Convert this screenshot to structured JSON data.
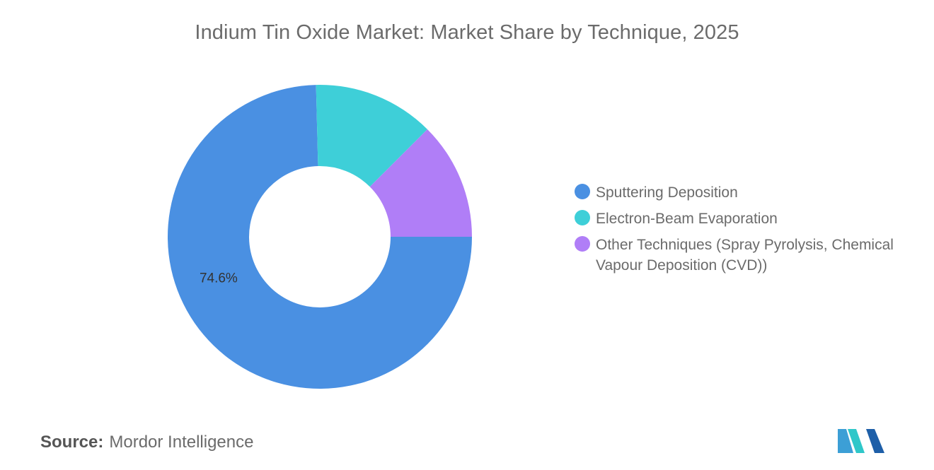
{
  "title": "Indium Tin Oxide Market: Market Share by Technique, 2025",
  "source": {
    "key": "Source:",
    "value": "Mordor Intelligence"
  },
  "chart_data": {
    "type": "pie",
    "style": "donut",
    "title": "Indium Tin Oxide Market: Market Share by Technique, 2025",
    "categories": [
      "Sputtering Deposition",
      "Electron-Beam Evaporation",
      "Other Techniques (Spray Pyrolysis, Chemical Vapour Deposition (CVD))"
    ],
    "values": [
      74.6,
      12.9,
      12.5
    ],
    "colors": [
      "#4a90e2",
      "#3ecfd8",
      "#b07ef7"
    ],
    "data_labels": [
      "74.6%",
      "",
      ""
    ],
    "legend_position": "right"
  },
  "legend": {
    "items": [
      {
        "label": "Sputtering Deposition",
        "color": "#4a90e2"
      },
      {
        "label": "Electron-Beam Evaporation",
        "color": "#3ecfd8"
      },
      {
        "label": "Other Techniques (Spray Pyrolysis, Chemical Vapour Deposition (CVD))",
        "color": "#b07ef7"
      }
    ]
  },
  "logo": {
    "colors": [
      "#3c9fd6",
      "#2fc7c9",
      "#1e5fa8"
    ]
  }
}
